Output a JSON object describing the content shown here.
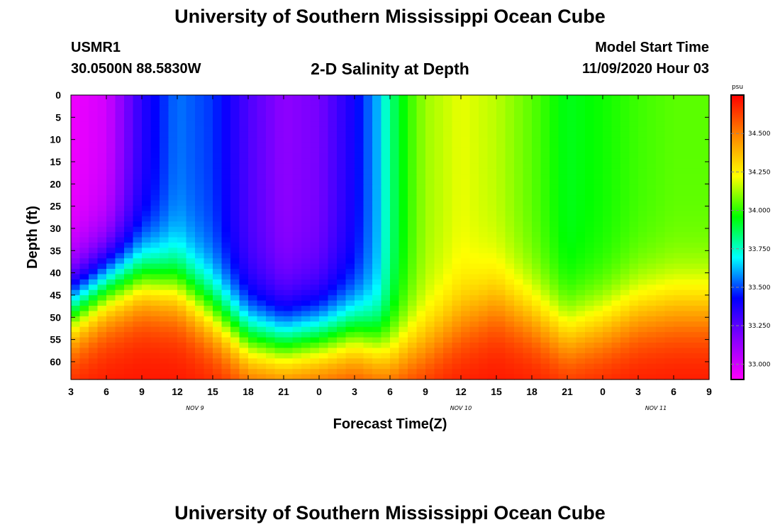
{
  "header": {
    "title": "University of Southern Mississippi Ocean Cube",
    "station_id": "USMR1",
    "station_coords": "30.0500N 88.5830W",
    "plot_title": "2-D Salinity at Depth",
    "start_label": "Model Start Time",
    "start_value": "11/09/2020 Hour 03"
  },
  "footer": {
    "title": "University of Southern Mississippi Ocean Cube"
  },
  "chart_data": {
    "type": "heatmap",
    "title": "2-D Salinity at Depth",
    "xlabel": "Forecast Time(Z)",
    "ylabel": "Depth (ft)",
    "x_range_hours": [
      0,
      54
    ],
    "y_range_ft": [
      0,
      64
    ],
    "x_tick_labels": [
      "3",
      "6",
      "9",
      "12",
      "15",
      "18",
      "21",
      "0",
      "3",
      "6",
      "9",
      "12",
      "15",
      "18",
      "21",
      "0",
      "3",
      "6",
      "9"
    ],
    "y_tick_values": [
      0,
      5,
      10,
      15,
      20,
      25,
      30,
      35,
      40,
      45,
      50,
      55,
      60
    ],
    "date_labels": [
      {
        "text": "NOV  9",
        "hour": 10.5
      },
      {
        "text": "NOV  10",
        "hour": 33
      },
      {
        "text": "NOV  11",
        "hour": 49.5
      }
    ],
    "colorbar": {
      "units": "psu",
      "range": [
        32.9,
        34.75
      ],
      "ticks": [
        33.0,
        33.25,
        33.5,
        33.75,
        34.0,
        34.25,
        34.5
      ],
      "tick_labels": [
        "33.000",
        "33.250",
        "33.500",
        "33.750",
        "34.000",
        "34.250",
        "34.500"
      ],
      "colors": [
        "#ff00ff",
        "#8800ff",
        "#0000ff",
        "#00ffff",
        "#00ff00",
        "#ffff00",
        "#ff8800",
        "#ff0000"
      ]
    },
    "surface_salinity_by_hour": [
      [
        0,
        32.93
      ],
      [
        3,
        33.0
      ],
      [
        6,
        33.35
      ],
      [
        9,
        33.55
      ],
      [
        12,
        33.48
      ],
      [
        15,
        33.28
      ],
      [
        18,
        33.15
      ],
      [
        21,
        33.2
      ],
      [
        24,
        33.4
      ],
      [
        26,
        33.62
      ],
      [
        27,
        33.82
      ],
      [
        28.5,
        34.0
      ],
      [
        30,
        34.12
      ],
      [
        33,
        34.2
      ],
      [
        36,
        34.15
      ],
      [
        39,
        34.05
      ],
      [
        42,
        33.93
      ],
      [
        45,
        33.97
      ],
      [
        48,
        34.02
      ],
      [
        51,
        34.05
      ],
      [
        54,
        34.05
      ]
    ],
    "halocline_depth_ft_by_hour": [
      [
        0,
        48
      ],
      [
        3,
        43
      ],
      [
        6,
        41
      ],
      [
        9,
        43
      ],
      [
        12,
        49
      ],
      [
        15,
        55
      ],
      [
        18,
        56
      ],
      [
        21,
        55
      ],
      [
        24,
        54
      ],
      [
        27,
        58
      ],
      [
        30,
        56
      ],
      [
        33,
        51
      ],
      [
        36,
        47
      ],
      [
        39,
        50
      ],
      [
        42,
        54
      ],
      [
        45,
        52
      ],
      [
        48,
        49
      ],
      [
        51,
        48
      ],
      [
        54,
        48
      ]
    ],
    "bottom_salinity_psu": 34.72
  }
}
